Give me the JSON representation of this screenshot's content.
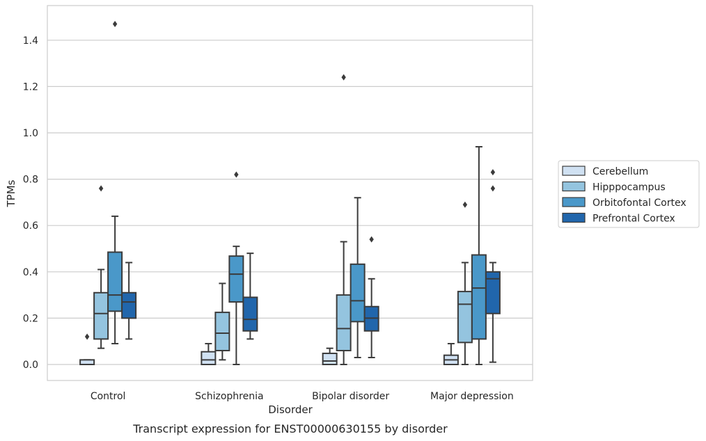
{
  "chart_data": {
    "type": "box",
    "caption": "Transcript expression for ENST00000630155 by disorder",
    "xlabel": "Disorder",
    "ylabel": "TPMs",
    "ylim": [
      -0.07,
      1.55
    ],
    "yticks": [
      "0.0",
      "0.2",
      "0.4",
      "0.6",
      "0.8",
      "1.0",
      "1.2",
      "1.4"
    ],
    "ytick_values": [
      0.0,
      0.2,
      0.4,
      0.6,
      0.8,
      1.0,
      1.2,
      1.4
    ],
    "grid": "horizontal",
    "legend_position": "right",
    "categories": [
      "Control",
      "Schizophrenia",
      "Bipolar disorder",
      "Major depression"
    ],
    "series": [
      {
        "name": "Cerebellum",
        "color": "#d0e1f2",
        "boxes": [
          {
            "whislo": 0.0,
            "q1": 0.0,
            "med": 0.0,
            "q3": 0.02,
            "whishi": 0.02,
            "fliers": [
              0.12
            ]
          },
          {
            "whislo": 0.0,
            "q1": 0.0,
            "med": 0.02,
            "q3": 0.055,
            "whishi": 0.09,
            "fliers": []
          },
          {
            "whislo": 0.0,
            "q1": 0.0,
            "med": 0.015,
            "q3": 0.048,
            "whishi": 0.07,
            "fliers": []
          },
          {
            "whislo": 0.0,
            "q1": 0.0,
            "med": 0.02,
            "q3": 0.04,
            "whishi": 0.09,
            "fliers": []
          }
        ]
      },
      {
        "name": "Hipppocampus",
        "color": "#94c4df",
        "boxes": [
          {
            "whislo": 0.07,
            "q1": 0.11,
            "med": 0.22,
            "q3": 0.31,
            "whishi": 0.41,
            "fliers": [
              0.76
            ]
          },
          {
            "whislo": 0.02,
            "q1": 0.06,
            "med": 0.135,
            "q3": 0.225,
            "whishi": 0.35,
            "fliers": []
          },
          {
            "whislo": 0.0,
            "q1": 0.06,
            "med": 0.155,
            "q3": 0.3,
            "whishi": 0.53,
            "fliers": [
              1.24
            ]
          },
          {
            "whislo": 0.0,
            "q1": 0.095,
            "med": 0.26,
            "q3": 0.315,
            "whishi": 0.44,
            "fliers": [
              0.69
            ]
          }
        ]
      },
      {
        "name": "Orbitofontal Cortex",
        "color": "#4a98c9",
        "boxes": [
          {
            "whislo": 0.09,
            "q1": 0.23,
            "med": 0.3,
            "q3": 0.485,
            "whishi": 0.64,
            "fliers": [
              1.47
            ]
          },
          {
            "whislo": 0.0,
            "q1": 0.27,
            "med": 0.39,
            "q3": 0.468,
            "whishi": 0.51,
            "fliers": [
              0.82
            ]
          },
          {
            "whislo": 0.03,
            "q1": 0.185,
            "med": 0.275,
            "q3": 0.433,
            "whishi": 0.72,
            "fliers": []
          },
          {
            "whislo": 0.0,
            "q1": 0.11,
            "med": 0.33,
            "q3": 0.473,
            "whishi": 0.94,
            "fliers": []
          }
        ]
      },
      {
        "name": "Prefrontal Cortex",
        "color": "#2166ac",
        "boxes": [
          {
            "whislo": 0.11,
            "q1": 0.2,
            "med": 0.27,
            "q3": 0.31,
            "whishi": 0.44,
            "fliers": []
          },
          {
            "whislo": 0.11,
            "q1": 0.145,
            "med": 0.195,
            "q3": 0.29,
            "whishi": 0.48,
            "fliers": []
          },
          {
            "whislo": 0.03,
            "q1": 0.145,
            "med": 0.2,
            "q3": 0.25,
            "whishi": 0.37,
            "fliers": [
              0.54
            ]
          },
          {
            "whislo": 0.01,
            "q1": 0.22,
            "med": 0.37,
            "q3": 0.4,
            "whishi": 0.44,
            "fliers": [
              0.76,
              0.83
            ]
          }
        ]
      }
    ]
  }
}
